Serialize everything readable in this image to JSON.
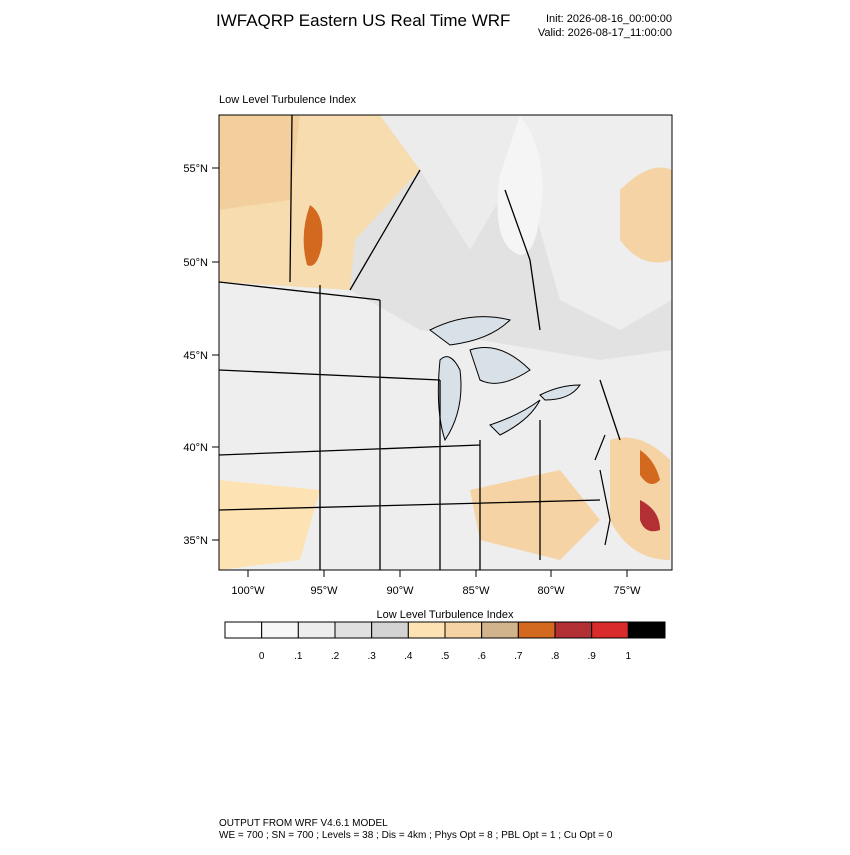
{
  "header": {
    "title": "IWFAQRP Eastern US Real Time WRF",
    "init": "Init: 2026-08-16_00:00:00",
    "valid": "Valid: 2026-08-17_11:00:00"
  },
  "map": {
    "subtitle": "Low Level Turbulence Index",
    "lat_labels": [
      "55°N",
      "50°N",
      "45°N",
      "40°N",
      "35°N"
    ],
    "lon_labels": [
      "100°W",
      "95°W",
      "90°W",
      "85°W",
      "80°W",
      "75°W"
    ]
  },
  "colorbar": {
    "title": "Low Level Turbulence Index",
    "colors": [
      "#ffffff",
      "#f7f7f7",
      "#ededed",
      "#e0e0e0",
      "#d3d3d3",
      "#fde3b4",
      "#f5d3a4",
      "#d2b48c",
      "#d2691e",
      "#b22f33",
      "#d92b2b",
      "#000000"
    ],
    "labels": [
      "0",
      ".1",
      ".2",
      ".3",
      ".4",
      ".5",
      ".6",
      ".7",
      ".8",
      ".9",
      "1"
    ]
  },
  "footer": {
    "line1": "OUTPUT FROM WRF V4.6.1 MODEL",
    "line2": "WE = 700 ; SN = 700 ; Levels = 38 ; Dis = 4km ; Phys Opt = 8 ; PBL Opt = 1 ; Cu Opt = 0"
  }
}
